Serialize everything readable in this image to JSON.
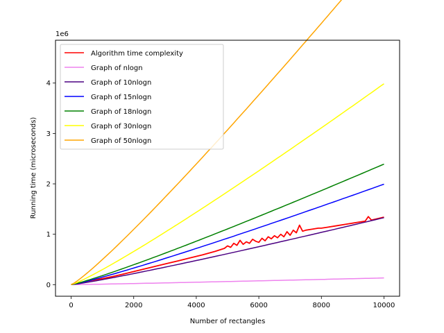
{
  "chart_data": {
    "type": "line",
    "xlabel": "Number of rectangles",
    "ylabel": "Running time (microseconds)",
    "y_offset_text": "1e6",
    "xlim": [
      -500,
      10500
    ],
    "ylim": [
      -0.23,
      4.85
    ],
    "y_unit_scale": 1000000,
    "x_ticks": [
      0,
      2000,
      4000,
      6000,
      8000,
      10000
    ],
    "y_ticks": [
      0,
      1,
      2,
      3,
      4
    ],
    "x_tick_labels": [
      "0",
      "2000",
      "4000",
      "6000",
      "8000",
      "10000"
    ],
    "y_tick_labels": [
      "0",
      "1",
      "2",
      "3",
      "4"
    ],
    "grid": false,
    "legend_position": "upper-left",
    "series": [
      {
        "name": "Algorithm time complexity",
        "color": "#ff0000",
        "x": [
          0,
          300,
          600,
          1000,
          1400,
          1800,
          2200,
          2600,
          3000,
          3400,
          3800,
          4200,
          4600,
          4900,
          5000,
          5100,
          5200,
          5300,
          5400,
          5500,
          5600,
          5700,
          5800,
          5900,
          6000,
          6100,
          6200,
          6300,
          6400,
          6500,
          6600,
          6700,
          6800,
          6900,
          7000,
          7100,
          7200,
          7300,
          7400,
          7500,
          7700,
          7900,
          8000,
          8200,
          8500,
          8800,
          9100,
          9400,
          9500,
          9600,
          9800,
          10000
        ],
        "y": [
          0.0,
          0.04,
          0.08,
          0.12,
          0.17,
          0.23,
          0.29,
          0.35,
          0.41,
          0.47,
          0.53,
          0.59,
          0.66,
          0.72,
          0.77,
          0.74,
          0.82,
          0.78,
          0.88,
          0.8,
          0.85,
          0.82,
          0.9,
          0.86,
          0.84,
          0.92,
          0.87,
          0.95,
          0.91,
          0.97,
          0.93,
          1.0,
          0.95,
          1.05,
          0.98,
          1.08,
          1.03,
          1.18,
          1.06,
          1.08,
          1.1,
          1.12,
          1.12,
          1.14,
          1.17,
          1.2,
          1.23,
          1.26,
          1.35,
          1.28,
          1.31,
          1.34
        ]
      },
      {
        "name": "Graph of nlogn",
        "color": "#ee82ee",
        "k": 1
      },
      {
        "name": "Graph of 10nlogn",
        "color": "#4b0082",
        "k": 10
      },
      {
        "name": "Graph of 15nlogn",
        "color": "#0000ff",
        "k": 15
      },
      {
        "name": "Graph of 18nlogn",
        "color": "#008000",
        "k": 18
      },
      {
        "name": "Graph of 30nlogn",
        "color": "#ffff00",
        "k": 30
      },
      {
        "name": "Graph of 50nlogn",
        "color": "#ffa500",
        "k": 50
      }
    ]
  }
}
